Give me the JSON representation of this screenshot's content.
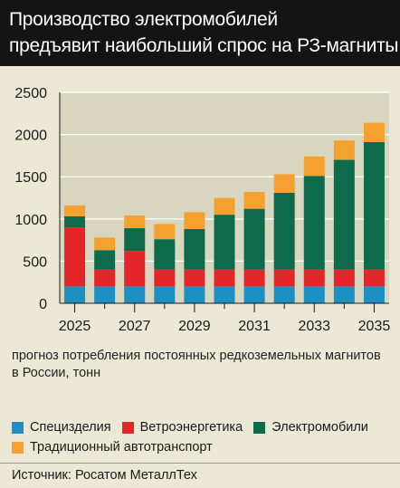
{
  "title": {
    "line1": "Производство электромобилей",
    "line2": "предъявит наибольший спрос на РЗ-магниты"
  },
  "caption": "прогноз потребления постоянных редкоземельных магнитов в России, тонн",
  "source": "Источник: Росатом МеталлТех",
  "colors": {
    "special": "#1e8fc3",
    "wind": "#e4262a",
    "ev": "#0d6b4c",
    "traditional": "#f5a12f",
    "plot_bg": "#d9d6c0",
    "gridline": "#ffffff"
  },
  "chart_data": {
    "type": "bar",
    "stacked": true,
    "categories": [
      "2025",
      "2026",
      "2027",
      "2028",
      "2029",
      "2030",
      "2031",
      "2032",
      "2033",
      "2034",
      "2035"
    ],
    "x_tick_labels": [
      "2025",
      "2027",
      "2029",
      "2031",
      "2033",
      "2035"
    ],
    "ylim": [
      0,
      2500
    ],
    "y_ticks": [
      0,
      500,
      1000,
      1500,
      2000,
      2500
    ],
    "grid": true,
    "series": [
      {
        "name": "Специзделия",
        "color": "#1e8fc3",
        "values": [
          200,
          200,
          200,
          200,
          200,
          200,
          200,
          200,
          200,
          200,
          200
        ]
      },
      {
        "name": "Ветроэнергетика",
        "color": "#e4262a",
        "values": [
          700,
          200,
          420,
          200,
          200,
          200,
          200,
          200,
          200,
          200,
          200
        ]
      },
      {
        "name": "Электромобили",
        "color": "#0d6b4c",
        "values": [
          130,
          230,
          270,
          360,
          480,
          650,
          720,
          910,
          1110,
          1300,
          1510
        ]
      },
      {
        "name": "Традиционный автотранспорт",
        "color": "#f5a12f",
        "values": [
          130,
          150,
          150,
          180,
          200,
          200,
          200,
          220,
          230,
          230,
          230
        ]
      }
    ]
  }
}
